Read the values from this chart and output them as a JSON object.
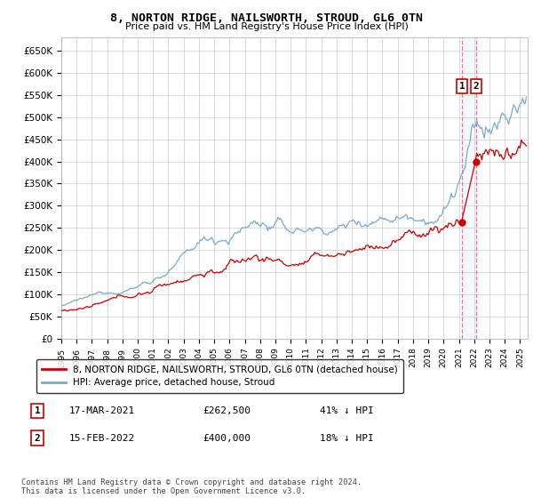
{
  "title": "8, NORTON RIDGE, NAILSWORTH, STROUD, GL6 0TN",
  "subtitle": "Price paid vs. HM Land Registry's House Price Index (HPI)",
  "ylabel_ticks": [
    "£0",
    "£50K",
    "£100K",
    "£150K",
    "£200K",
    "£250K",
    "£300K",
    "£350K",
    "£400K",
    "£450K",
    "£500K",
    "£550K",
    "£600K",
    "£650K"
  ],
  "ytick_values": [
    0,
    50000,
    100000,
    150000,
    200000,
    250000,
    300000,
    350000,
    400000,
    450000,
    500000,
    550000,
    600000,
    650000
  ],
  "ylim": [
    0,
    680000
  ],
  "xlim_start": 1995.0,
  "xlim_end": 2025.5,
  "hpi_color": "#7aaad0",
  "price_color": "#cc0000",
  "dashed_line_color": "#ff6699",
  "shade_color": "#cce0ff",
  "legend_label_red": "8, NORTON RIDGE, NAILSWORTH, STROUD, GL6 0TN (detached house)",
  "legend_label_blue": "HPI: Average price, detached house, Stroud",
  "transaction1_date": "17-MAR-2021",
  "transaction1_price": "£262,500",
  "transaction1_note": "41% ↓ HPI",
  "transaction2_date": "15-FEB-2022",
  "transaction2_price": "£400,000",
  "transaction2_note": "18% ↓ HPI",
  "footer": "Contains HM Land Registry data © Crown copyright and database right 2024.\nThis data is licensed under the Open Government Licence v3.0.",
  "transaction1_x": 2021.2,
  "transaction1_y": 262500,
  "transaction2_x": 2022.12,
  "transaction2_y": 400000
}
